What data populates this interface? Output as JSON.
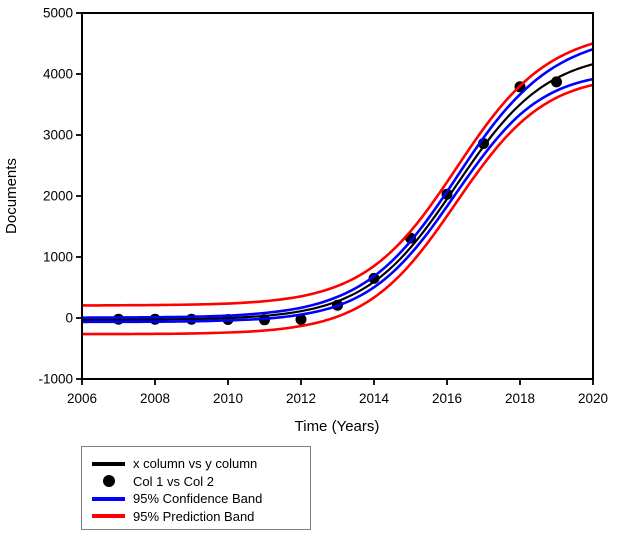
{
  "chart_data": {
    "type": "line+scatter",
    "title": "",
    "xlabel": "Time (Years)",
    "ylabel": "Documents",
    "xlim": [
      2006,
      2020
    ],
    "ylim": [
      -1000,
      5000
    ],
    "x_ticks": [
      2006,
      2008,
      2010,
      2012,
      2014,
      2016,
      2018,
      2020
    ],
    "y_ticks": [
      -1000,
      0,
      1000,
      2000,
      3000,
      4000,
      5000
    ],
    "grid": false,
    "legend_position": "below-left",
    "colors": {
      "fit": "#000000",
      "scatter": "#000000",
      "confidence": "#0000ff",
      "prediction": "#ff0000",
      "frame": "#000000"
    },
    "scatter": {
      "name": "Col 1 vs Col 2",
      "x": [
        2007,
        2008,
        2009,
        2010,
        2011,
        2012,
        2013,
        2014,
        2015,
        2016,
        2017,
        2018,
        2019
      ],
      "y": [
        -20,
        -20,
        -20,
        -25,
        -30,
        -25,
        210,
        650,
        1310,
        2030,
        2860,
        3790,
        3870
      ]
    },
    "fit_curve": {
      "name": "x column vs y column",
      "model": "logistic: y = y0 + a/(1+exp(-(x-x0)/b))",
      "params": {
        "y0": -30,
        "a": 4400,
        "x0": 2016.25,
        "b": 1.25
      },
      "x": [
        2006,
        2006.5,
        2007,
        2007.5,
        2008,
        2008.5,
        2009,
        2009.5,
        2010,
        2010.5,
        2011,
        2011.5,
        2012,
        2012.5,
        2013,
        2013.5,
        2014,
        2014.5,
        2015,
        2015.5,
        2016,
        2016.5,
        2017,
        2017.5,
        2018,
        2018.5,
        2019,
        2019.5,
        2020
      ],
      "y": [
        -29,
        -28,
        -27,
        -26,
        -24,
        -21,
        -17,
        -10,
        -1,
        14,
        35,
        66,
        112,
        179,
        274,
        409,
        594,
        840,
        1153,
        1529,
        1951,
        2390,
        2812,
        3187,
        3500,
        3746,
        3931,
        4066,
        4161
      ]
    },
    "confidence_band": {
      "name": "95% Confidence Band",
      "level": "95%",
      "half_width": [
        35,
        35,
        36,
        36,
        37,
        37,
        37,
        38,
        38,
        42,
        47,
        51,
        55,
        64,
        73,
        81,
        90,
        98,
        105,
        113,
        120,
        131,
        143,
        154,
        165,
        185,
        205,
        225,
        245
      ]
    },
    "prediction_band": {
      "name": "95% Prediction Band",
      "level": "95%",
      "half_width": [
        235,
        235,
        236,
        236,
        236,
        237,
        237,
        237,
        237,
        239,
        240,
        242,
        243,
        247,
        251,
        254,
        258,
        263,
        268,
        273,
        278,
        285,
        292,
        298,
        305,
        313,
        320,
        330,
        340
      ]
    }
  },
  "legend": {
    "items": [
      {
        "label": "x column vs y column",
        "swatch": "line",
        "color": "#000000"
      },
      {
        "label": "Col 1 vs Col 2",
        "swatch": "circle",
        "color": "#000000"
      },
      {
        "label": "95% Confidence Band",
        "swatch": "line",
        "color": "#0000ff"
      },
      {
        "label": "95% Prediction Band",
        "swatch": "line",
        "color": "#ff0000"
      }
    ]
  }
}
